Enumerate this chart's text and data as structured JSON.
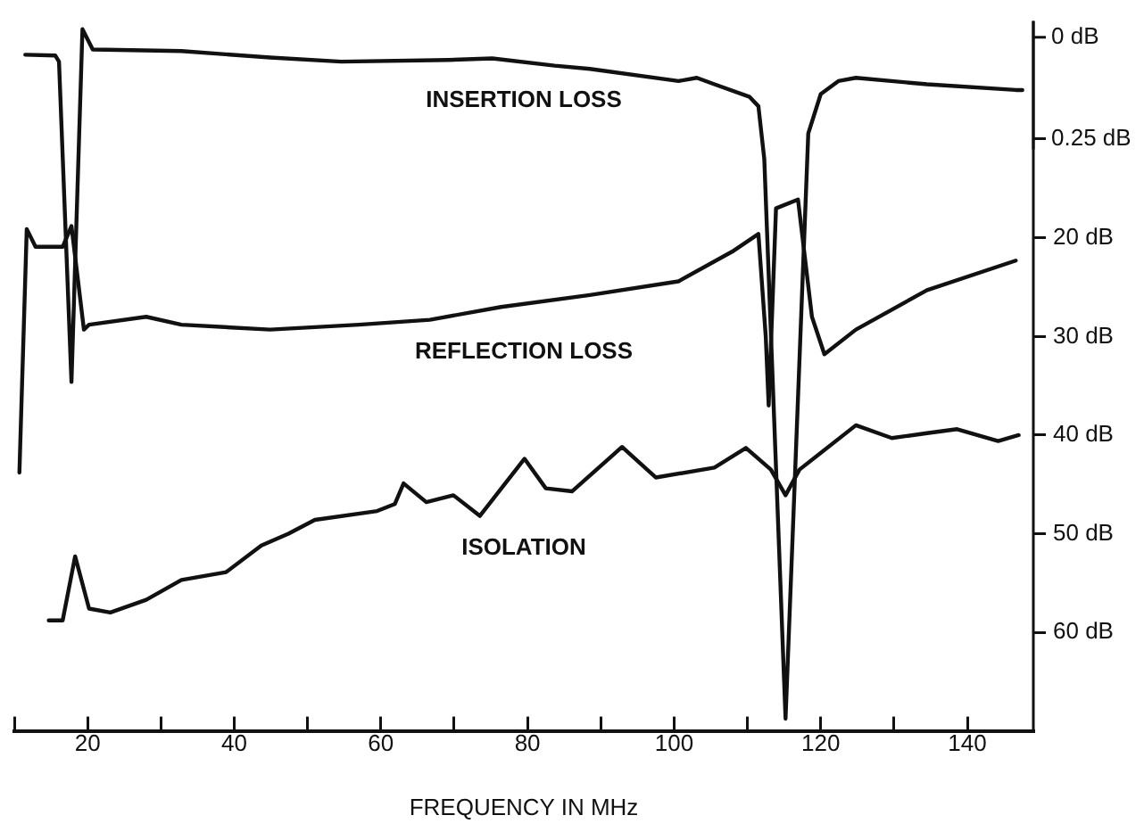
{
  "chart_data": {
    "type": "line",
    "xlabel": "FREQUENCY IN MHz",
    "xlim": [
      10,
      149
    ],
    "xticks": [
      {
        "value": 10,
        "label": null
      },
      20,
      {
        "value": 30,
        "label": null
      },
      40,
      {
        "value": 50,
        "label": null
      },
      60,
      {
        "value": 70,
        "label": null
      },
      80,
      {
        "value": 90,
        "label": null
      },
      100,
      {
        "value": 110,
        "label": null
      },
      120,
      {
        "value": 130,
        "label": null
      },
      140
    ],
    "ylim": [
      70,
      -2
    ],
    "yticks": [
      {
        "value": 20,
        "label": "20 dB"
      },
      {
        "value": 30,
        "label": "30 dB"
      },
      {
        "value": 40,
        "label": "40 dB"
      },
      {
        "value": 50,
        "label": "50 dB"
      },
      {
        "value": 60,
        "label": "60 dB"
      }
    ],
    "y2lim": [
      1.71,
      -0.04
    ],
    "y2ticks": [
      {
        "value": 0,
        "label": "0 dB"
      },
      {
        "value": 0.25,
        "label": "0.25 dB"
      }
    ],
    "grid": false,
    "legend": false,
    "marker": "none",
    "line_style": "solid",
    "series": [
      {
        "name": "INSERTION LOSS",
        "axis": "y2",
        "color": "#111111",
        "x": [
          11.5,
          15.6,
          16.1,
          17.8,
          19.3,
          20.7,
          32.8,
          44.9,
          54.6,
          69.2,
          75.2,
          83.7,
          88.5,
          100.6,
          103.1,
          105.5,
          110.3,
          111.5,
          112.3,
          115.2,
          118.3,
          120,
          122.4,
          124.8,
          134.5,
          146.6,
          147.5
        ],
        "values": [
          0.043,
          0.045,
          0.06,
          0.85,
          -0.02,
          0.03,
          0.034,
          0.05,
          0.06,
          0.056,
          0.052,
          0.07,
          0.078,
          0.108,
          0.1,
          0.116,
          0.147,
          0.17,
          0.3,
          1.68,
          0.237,
          0.14,
          0.108,
          0.1,
          0.116,
          0.13,
          0.13
        ]
      },
      {
        "name": "REFLECTION LOSS",
        "color": "#111111",
        "x": [
          10.7,
          11.7,
          12.9,
          16.6,
          17.8,
          19.5,
          20.2,
          28,
          32.8,
          44.9,
          57,
          66.7,
          76.4,
          88.5,
          100.6,
          107.9,
          111.5,
          112.5,
          112.9,
          113.5,
          113.9,
          116.9,
          118.8,
          120.5,
          124.8,
          134.5,
          146.6
        ],
        "values": [
          43.8,
          19.1,
          20.9,
          20.9,
          18.8,
          29.3,
          28.8,
          28,
          28.8,
          29.3,
          28.8,
          28.3,
          27,
          25.8,
          24.4,
          21.4,
          19.6,
          30,
          37,
          25,
          17,
          16.1,
          28,
          31.8,
          29.3,
          25.3,
          22.3
        ]
      },
      {
        "name": "ISOLATION",
        "color": "#111111",
        "x": [
          14.7,
          16.6,
          18.3,
          20.2,
          23.1,
          28,
          32.8,
          38.9,
          43.7,
          47.4,
          51,
          59.5,
          61.9,
          63.1,
          66.2,
          69.9,
          73.5,
          79.6,
          82.5,
          86.1,
          92.9,
          97.5,
          105.5,
          109.8,
          113.2,
          115.2,
          117.1,
          124.8,
          129.7,
          134.5,
          138.6,
          144.2,
          147
        ],
        "values": [
          58.8,
          58.8,
          52.3,
          57.6,
          58,
          56.7,
          54.7,
          53.9,
          51.2,
          50,
          48.6,
          47.7,
          47,
          44.9,
          46.8,
          46.1,
          48.2,
          42.4,
          45.4,
          45.7,
          41.2,
          44.3,
          43.3,
          41.3,
          43.5,
          46.1,
          43.5,
          39,
          40.3,
          39.8,
          39.4,
          40.6,
          40
        ]
      }
    ]
  }
}
